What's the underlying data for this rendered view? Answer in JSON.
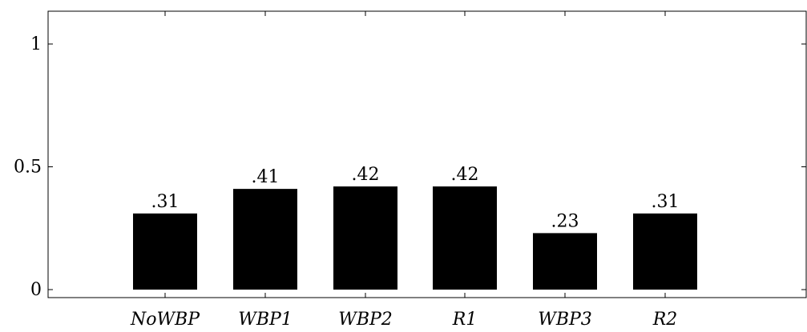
{
  "chart_data": {
    "type": "bar",
    "categories": [
      "NoWBP",
      "WBP1",
      "WBP2",
      "R1",
      "WBP3",
      "R2"
    ],
    "values": [
      0.31,
      0.41,
      0.42,
      0.42,
      0.23,
      0.31
    ],
    "data_labels": [
      ".31",
      ".41",
      ".42",
      ".42",
      ".23",
      ".31"
    ],
    "title": "",
    "xlabel": "",
    "ylabel": "",
    "ylim": [
      0,
      1.1
    ],
    "yticks": [
      0,
      0.5,
      1
    ],
    "ytick_labels": [
      "0",
      "0.5",
      "1"
    ],
    "grid": false,
    "bar_color": "#000000"
  }
}
